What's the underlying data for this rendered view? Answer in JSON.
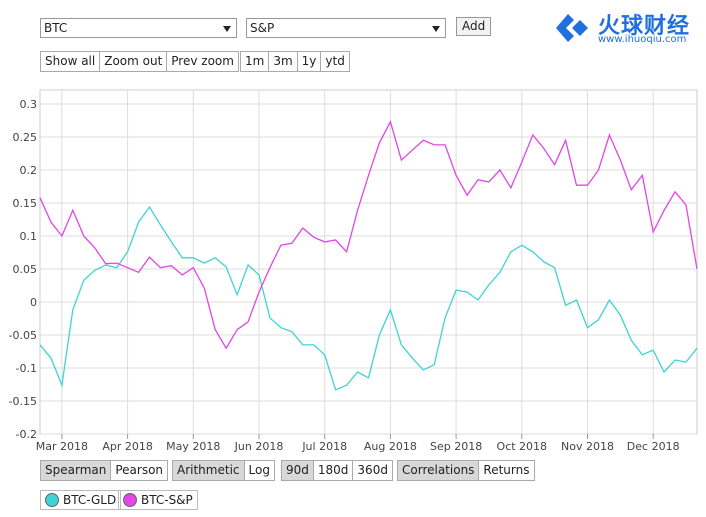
{
  "logo": {
    "name": "火球财经",
    "url": "www.ihuoqiu.com"
  },
  "controls": {
    "pair": [
      "BTC",
      "S&P"
    ],
    "add": "Add",
    "zoom": [
      "Show all",
      "Zoom out",
      "Prev zoom"
    ],
    "ranges": [
      "1m",
      "3m",
      "1y",
      "ytd"
    ],
    "methods": {
      "options": [
        "Spearman",
        "Pearson"
      ],
      "selected": 0
    },
    "scales": {
      "options": [
        "Arithmetic",
        "Log"
      ],
      "selected": 0
    },
    "windows": {
      "options": [
        "90d",
        "180d",
        "360d"
      ],
      "selected": 0
    },
    "views": {
      "options": [
        "Correlations",
        "Returns"
      ],
      "selected": 0
    }
  },
  "chart_data": {
    "type": "line",
    "categories": [
      null,
      null,
      "Mar 2018",
      null,
      null,
      null,
      null,
      null,
      "Apr 2018",
      null,
      null,
      null,
      null,
      null,
      "May 2018",
      null,
      null,
      null,
      null,
      null,
      "Jun 2018",
      null,
      null,
      null,
      null,
      null,
      "Jul 2018",
      null,
      null,
      null,
      null,
      null,
      "Aug 2018",
      null,
      null,
      null,
      null,
      null,
      "Sep 2018",
      null,
      null,
      null,
      null,
      null,
      "Oct 2018",
      null,
      null,
      null,
      null,
      null,
      "Nov 2018",
      null,
      null,
      null,
      null,
      null,
      "Dec 2018",
      null,
      null,
      null,
      null
    ],
    "series": [
      {
        "name": "BTC-GLD",
        "color": "#3fd3d3",
        "values": [
          -0.065,
          -0.085,
          -0.126,
          -0.012,
          0.033,
          0.048,
          0.056,
          0.052,
          0.076,
          0.121,
          0.144,
          0.117,
          0.091,
          0.067,
          0.067,
          0.059,
          0.067,
          0.053,
          0.011,
          0.056,
          0.041,
          -0.024,
          -0.039,
          -0.045,
          -0.065,
          -0.065,
          -0.08,
          -0.133,
          -0.126,
          -0.106,
          -0.115,
          -0.05,
          -0.012,
          -0.065,
          -0.085,
          -0.103,
          -0.095,
          -0.024,
          0.018,
          0.015,
          0.003,
          0.026,
          0.045,
          0.076,
          0.086,
          0.076,
          0.061,
          0.052,
          -0.005,
          0.003,
          -0.039,
          -0.027,
          0.003,
          -0.02,
          -0.058,
          -0.08,
          -0.073,
          -0.106,
          -0.088,
          -0.091,
          -0.07
        ]
      },
      {
        "name": "BTC-S&P",
        "color": "#e246e6",
        "values": [
          0.158,
          0.121,
          0.1,
          0.139,
          0.1,
          0.082,
          0.058,
          0.059,
          0.052,
          0.045,
          0.068,
          0.052,
          0.055,
          0.041,
          0.052,
          0.021,
          -0.042,
          -0.07,
          -0.042,
          -0.03,
          0.015,
          0.052,
          0.086,
          0.089,
          0.112,
          0.098,
          0.091,
          0.094,
          0.076,
          0.139,
          0.192,
          0.241,
          0.273,
          0.215,
          0.23,
          0.245,
          0.238,
          0.238,
          0.192,
          0.162,
          0.185,
          0.182,
          0.2,
          0.173,
          0.212,
          0.253,
          0.233,
          0.208,
          0.245,
          0.177,
          0.177,
          0.2,
          0.253,
          0.215,
          0.17,
          0.192,
          0.106,
          0.139,
          0.167,
          0.147,
          0.05
        ]
      }
    ],
    "ylim": [
      -0.2,
      0.3
    ],
    "yticks": [
      0.3,
      0.25,
      0.2,
      0.15,
      0.1,
      0.05,
      0,
      -0.05,
      -0.1,
      -0.15,
      -0.2
    ],
    "grid": true
  }
}
